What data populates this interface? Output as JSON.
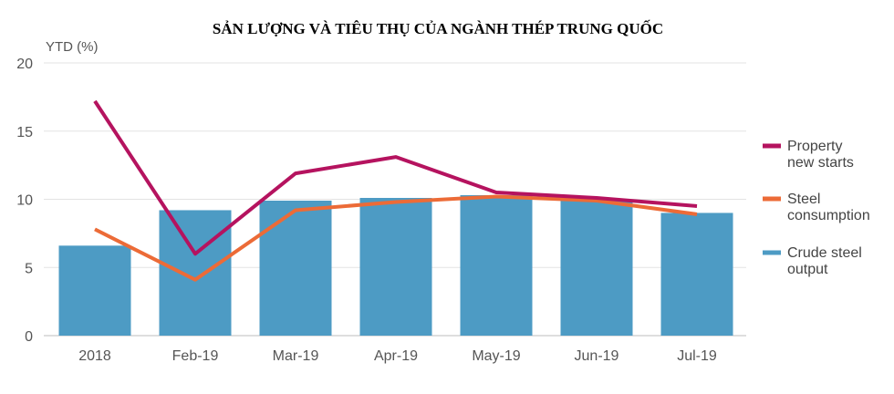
{
  "chart_data": {
    "type": "bar",
    "title": "SẢN LƯỢNG VÀ TIÊU THỤ CỦA NGÀNH THÉP TRUNG QUỐC",
    "ylabel": "YTD (%)",
    "ylim": [
      0,
      20
    ],
    "yticks": [
      0,
      5,
      10,
      15,
      20
    ],
    "grid": true,
    "legend_position": "right",
    "categories": [
      "2018",
      "Feb-19",
      "Mar-19",
      "Apr-19",
      "May-19",
      "Jun-19",
      "Jul-19"
    ],
    "series": [
      {
        "name": "Property new starts",
        "kind": "line",
        "color": "#b5135f",
        "values": [
          17.2,
          6.0,
          11.9,
          13.1,
          10.5,
          10.1,
          9.5
        ]
      },
      {
        "name": "Steel consumption",
        "kind": "line",
        "color": "#ec6b37",
        "values": [
          7.8,
          4.1,
          9.2,
          9.8,
          10.2,
          9.9,
          8.9
        ]
      },
      {
        "name": "Crude steel output",
        "kind": "bar",
        "color": "#4d9bc4",
        "values": [
          6.6,
          9.2,
          9.9,
          10.1,
          10.3,
          10.0,
          9.0
        ]
      }
    ],
    "legend": [
      {
        "series": 0,
        "lines": [
          "Property",
          "new starts"
        ]
      },
      {
        "series": 1,
        "lines": [
          "Steel",
          "consumption"
        ]
      },
      {
        "series": 2,
        "lines": [
          "Crude steel",
          "output"
        ]
      }
    ]
  }
}
